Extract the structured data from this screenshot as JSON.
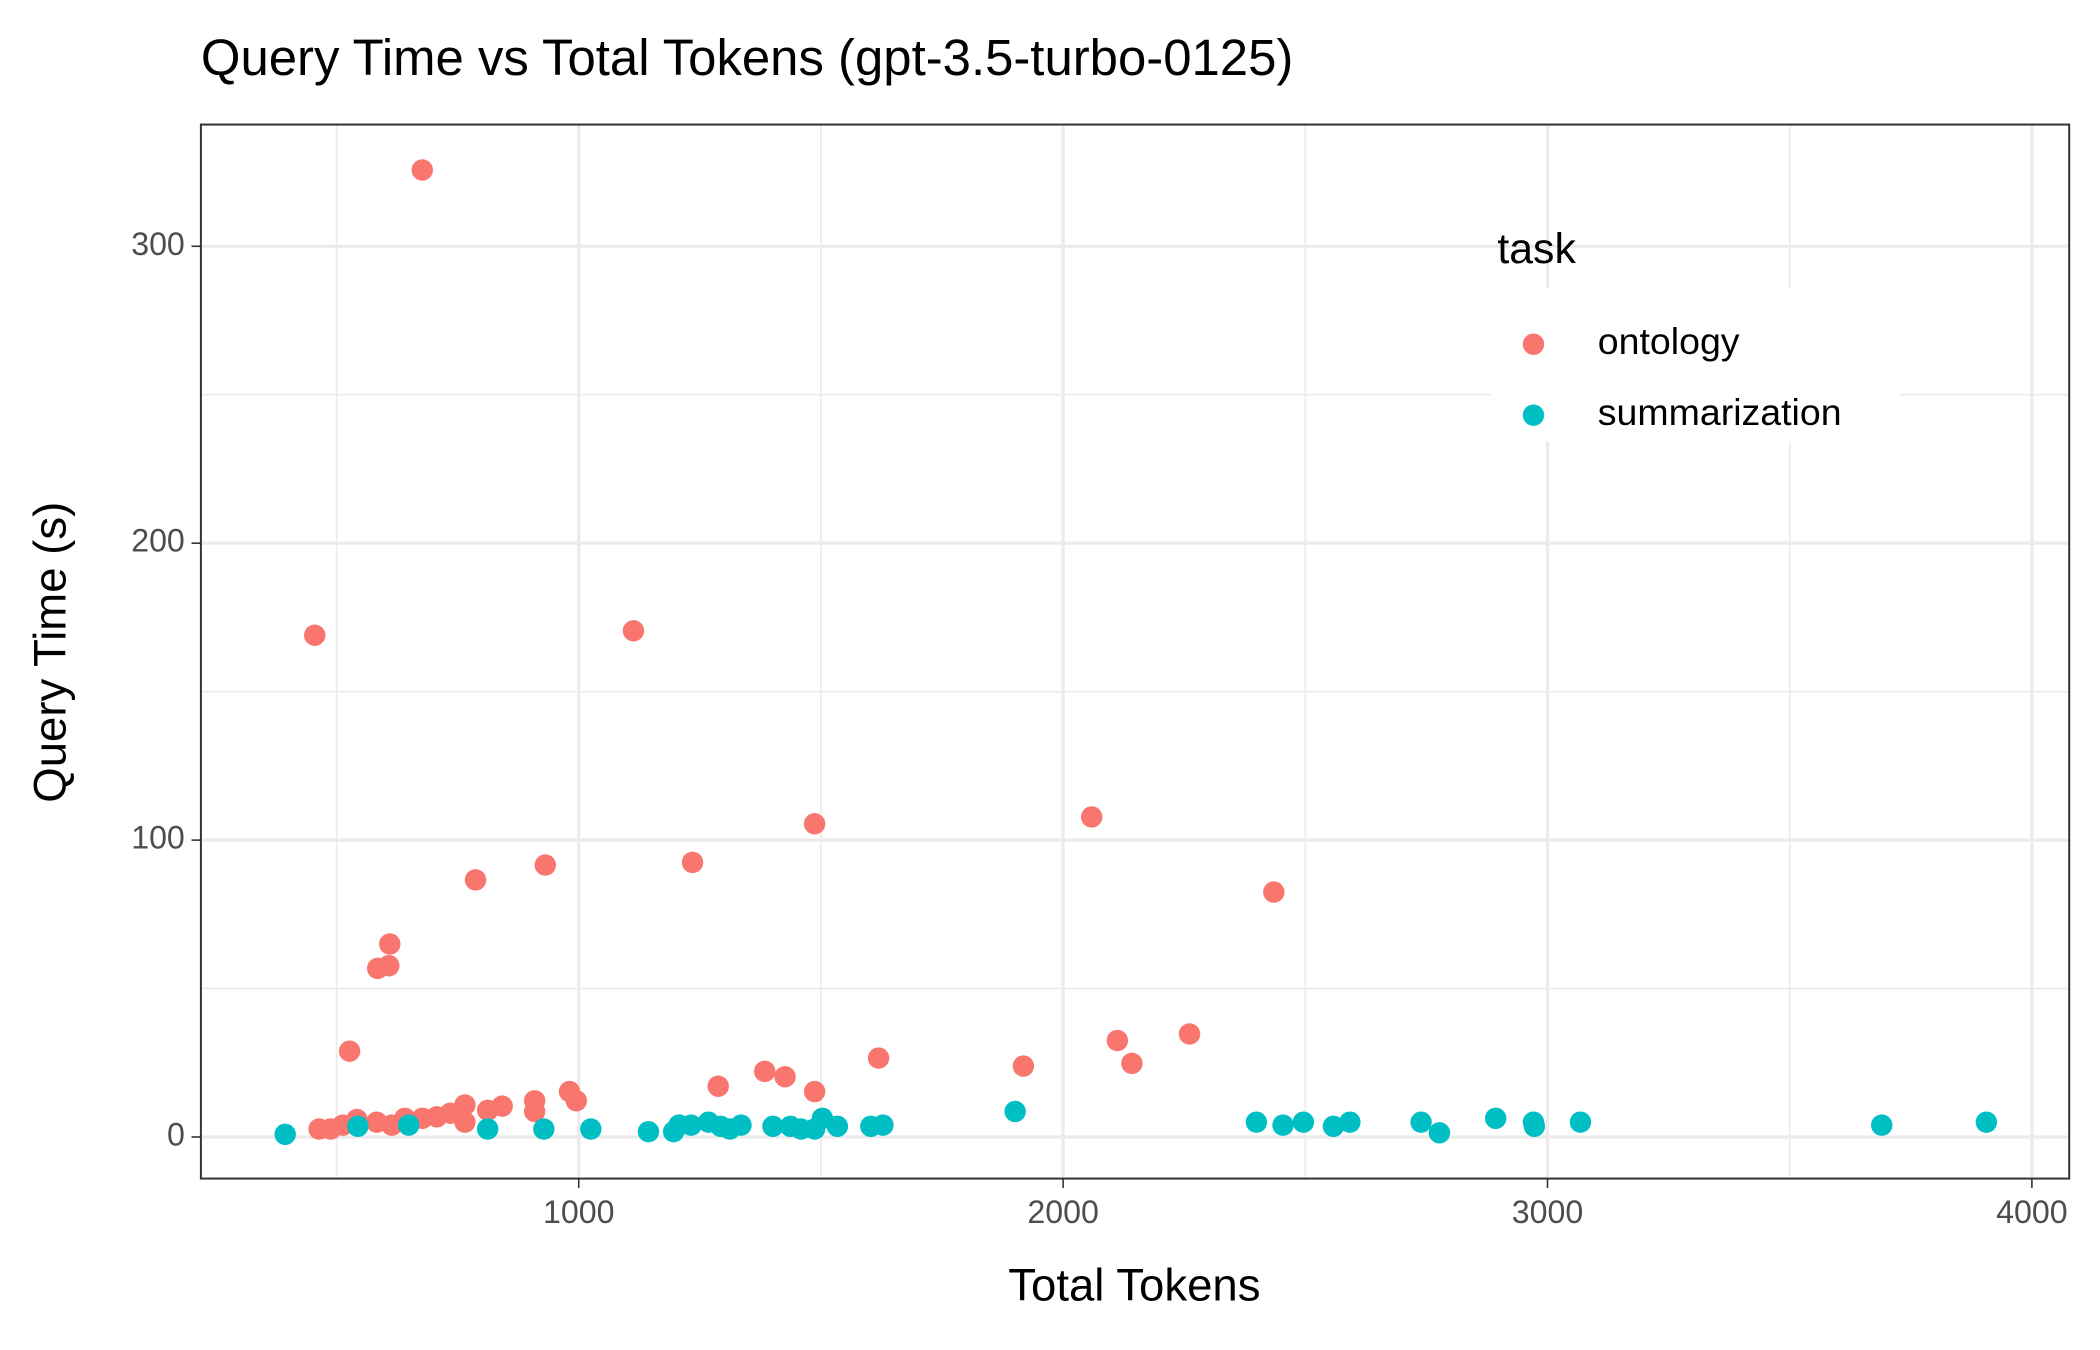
{
  "chart_data": {
    "type": "scatter",
    "title": "Query Time vs Total Tokens (gpt-3.5-turbo-0125)",
    "x_label": "Total Tokens",
    "y_label": "Query Time (s)",
    "xlim": [
      220,
      4077
    ],
    "ylim": [
      -14,
      341
    ],
    "xticks": [
      1000,
      2000,
      3000,
      4000
    ],
    "yticks": [
      0,
      100,
      200,
      300
    ],
    "x_minor_ticks": [
      500,
      1500,
      2500,
      3500
    ],
    "y_minor_ticks": [
      50,
      150,
      250
    ],
    "grid": true,
    "legend_title": "task",
    "legend_position": "top-right",
    "series": [
      {
        "name": "ontology",
        "color": "#F8766D",
        "x": [
          455,
          677,
          1113,
          787,
          931,
          1235,
          1487,
          2059,
          2435,
          610,
          585,
          608,
          527,
          1619,
          1918,
          2112,
          2142,
          2261,
          1384,
          1426,
          1288,
          1487,
          981,
          995,
          909,
          909,
          842,
          812,
          765,
          765,
          735,
          707,
          677,
          641,
          614,
          583,
          542,
          513,
          488,
          464
        ],
        "values": [
          169,
          325.7,
          170.5,
          86.6,
          91.6,
          92.5,
          105.5,
          107.8,
          82.5,
          65,
          56.8,
          57.7,
          28.9,
          26.6,
          23.9,
          32.5,
          24.8,
          34.7,
          22.1,
          20.3,
          17.1,
          15.3,
          15.3,
          12.2,
          12.2,
          8.6,
          10.4,
          9,
          10.8,
          5,
          8,
          6.8,
          6.3,
          6.3,
          4,
          5,
          5.9,
          4,
          2.7,
          2.7
        ]
      },
      {
        "name": "summarization",
        "color": "#00BFC4",
        "x": [
          394,
          544,
          649,
          812,
          928,
          1025,
          1144,
          1196,
          1207,
          1232,
          1268,
          1293,
          1312,
          1335,
          1401,
          1437,
          1459,
          1487,
          1503,
          1534,
          1603,
          1628,
          1901,
          2399,
          2454,
          2496,
          2558,
          2592,
          2739,
          2777,
          2893,
          2971,
          2973,
          3068,
          3690,
          3906
        ],
        "values": [
          0.9,
          3.6,
          4,
          2.7,
          2.7,
          2.7,
          1.8,
          1.8,
          4,
          4,
          5,
          3.6,
          2.7,
          4,
          3.6,
          3.6,
          2.7,
          2.7,
          6.3,
          3.6,
          3.6,
          4,
          8.6,
          5,
          4,
          5,
          3.6,
          5,
          5,
          1.4,
          6.3,
          5,
          3.6,
          5,
          4,
          5
        ]
      }
    ]
  }
}
